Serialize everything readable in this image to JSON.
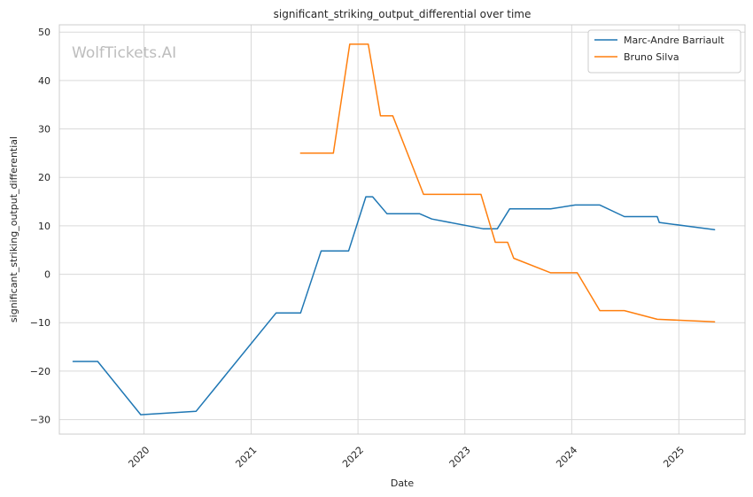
{
  "chart_data": {
    "type": "line",
    "title": "significant_striking_output_differential over time",
    "xlabel": "Date",
    "ylabel": "significant_striking_output_differential",
    "watermark": "WolfTickets.AI",
    "x_type": "date",
    "xlim": [
      "2019-03-18",
      "2025-08-15"
    ],
    "ylim": [
      -33,
      51.5
    ],
    "x_ticks": [
      "2020-01-01",
      "2021-01-01",
      "2022-01-01",
      "2023-01-01",
      "2024-01-01",
      "2025-01-01"
    ],
    "x_tick_labels": [
      "2020",
      "2021",
      "2022",
      "2023",
      "2024",
      "2025"
    ],
    "y_ticks": [
      -30,
      -20,
      -10,
      0,
      10,
      20,
      30,
      40,
      50
    ],
    "y_tick_labels": [
      "−30",
      "−20",
      "−10",
      "0",
      "10",
      "20",
      "30",
      "40",
      "50"
    ],
    "grid": true,
    "legend_position": "top-right",
    "series": [
      {
        "name": "Marc-Andre Barriault",
        "color": "#1f77b4",
        "points": [
          {
            "x": "2019-05-04",
            "y": -18
          },
          {
            "x": "2019-07-27",
            "y": -18
          },
          {
            "x": "2019-12-21",
            "y": -29
          },
          {
            "x": "2020-06-27",
            "y": -28.3
          },
          {
            "x": "2021-03-27",
            "y": -8
          },
          {
            "x": "2021-06-19",
            "y": -8
          },
          {
            "x": "2021-08-28",
            "y": 4.8
          },
          {
            "x": "2021-11-30",
            "y": 4.8
          },
          {
            "x": "2022-01-28",
            "y": 16
          },
          {
            "x": "2022-02-20",
            "y": 16
          },
          {
            "x": "2022-04-10",
            "y": 12.5
          },
          {
            "x": "2022-07-30",
            "y": 12.5
          },
          {
            "x": "2022-09-10",
            "y": 11.4
          },
          {
            "x": "2023-03-04",
            "y": 9.4
          },
          {
            "x": "2023-04-22",
            "y": 9.4
          },
          {
            "x": "2023-06-03",
            "y": 13.5
          },
          {
            "x": "2023-10-21",
            "y": 13.5
          },
          {
            "x": "2024-01-13",
            "y": 14.3
          },
          {
            "x": "2024-04-06",
            "y": 14.3
          },
          {
            "x": "2024-06-29",
            "y": 11.9
          },
          {
            "x": "2024-10-19",
            "y": 11.9
          },
          {
            "x": "2024-10-26",
            "y": 10.7
          },
          {
            "x": "2025-05-03",
            "y": 9.2
          }
        ]
      },
      {
        "name": "Bruno Silva",
        "color": "#ff7f0e",
        "points": [
          {
            "x": "2021-06-19",
            "y": 25
          },
          {
            "x": "2021-10-09",
            "y": 25
          },
          {
            "x": "2021-12-04",
            "y": 47.5
          },
          {
            "x": "2022-02-05",
            "y": 47.5
          },
          {
            "x": "2022-03-19",
            "y": 32.7
          },
          {
            "x": "2022-04-30",
            "y": 32.7
          },
          {
            "x": "2022-08-13",
            "y": 16.5
          },
          {
            "x": "2023-02-25",
            "y": 16.5
          },
          {
            "x": "2023-04-15",
            "y": 6.6
          },
          {
            "x": "2023-05-27",
            "y": 6.6
          },
          {
            "x": "2023-06-17",
            "y": 3.3
          },
          {
            "x": "2023-10-21",
            "y": 0.3
          },
          {
            "x": "2024-01-20",
            "y": 0.3
          },
          {
            "x": "2024-04-06",
            "y": -7.5
          },
          {
            "x": "2024-06-29",
            "y": -7.5
          },
          {
            "x": "2024-10-19",
            "y": -9.3
          },
          {
            "x": "2025-05-03",
            "y": -9.8
          }
        ]
      }
    ]
  }
}
